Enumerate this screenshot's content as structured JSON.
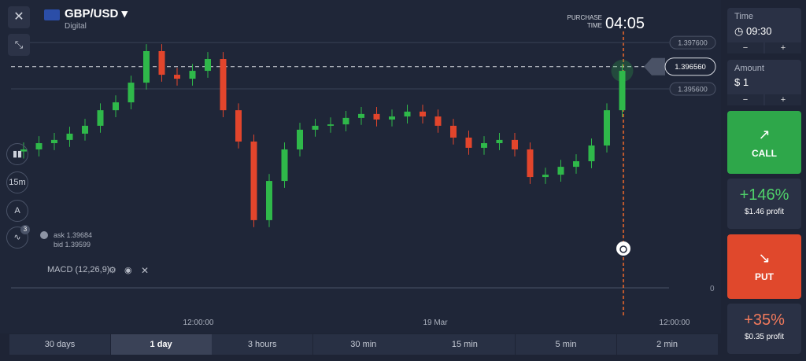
{
  "header": {
    "asset": "GBP/USD",
    "asset_type": "Digital",
    "purchase_label_1": "PURCHASE",
    "purchase_label_2": "TIME",
    "purchase_time": "04:05"
  },
  "quote": {
    "ask": "ask 1.39684",
    "bid": "bid 1.39599"
  },
  "tools": {
    "timeframe": "15m",
    "indicator_count": "3"
  },
  "chart": {
    "type": "candlestick",
    "ylim": [
      1.38824,
      1.39896
    ],
    "yticks": [
      {
        "value": 1.3976,
        "label": "1.397600"
      },
      {
        "value": 1.3956,
        "label": "1.395600"
      }
    ],
    "current_price": {
      "value": 1.39656,
      "label": "1.396560"
    },
    "up_color": "#2fb84a",
    "down_color": "#e2452c",
    "candles": {
      "open": [
        1.3929,
        1.39299,
        1.39326,
        1.3934,
        1.39367,
        1.39401,
        1.39468,
        1.39502,
        1.39587,
        1.39723,
        1.39621,
        1.39604,
        1.39638,
        1.39689,
        1.39468,
        1.39333,
        1.38994,
        1.39163,
        1.39299,
        1.39384,
        1.39401,
        1.39407,
        1.39435,
        1.39452,
        1.39428,
        1.39441,
        1.39462,
        1.39441,
        1.39401,
        1.3935,
        1.39306,
        1.39326,
        1.3934,
        1.39299,
        1.3918,
        1.3919,
        1.39224,
        1.39248,
        1.39316,
        1.39468
      ],
      "close": [
        1.39299,
        1.39326,
        1.3934,
        1.39367,
        1.39401,
        1.39468,
        1.39502,
        1.39587,
        1.39723,
        1.39621,
        1.39604,
        1.39638,
        1.39689,
        1.39468,
        1.39333,
        1.38994,
        1.39163,
        1.39299,
        1.39384,
        1.39401,
        1.39407,
        1.39435,
        1.39452,
        1.39428,
        1.39441,
        1.39462,
        1.39441,
        1.39401,
        1.3935,
        1.39306,
        1.39326,
        1.3934,
        1.39299,
        1.3918,
        1.3919,
        1.39224,
        1.39248,
        1.39316,
        1.39468,
        1.39638
      ],
      "high": [
        1.39329,
        1.39356,
        1.3937,
        1.39397,
        1.39431,
        1.39498,
        1.39532,
        1.39617,
        1.39753,
        1.39753,
        1.39651,
        1.39668,
        1.39719,
        1.39719,
        1.39498,
        1.39363,
        1.39193,
        1.39329,
        1.39414,
        1.39431,
        1.39437,
        1.39465,
        1.39482,
        1.39482,
        1.39471,
        1.39492,
        1.39492,
        1.39471,
        1.39431,
        1.3938,
        1.39356,
        1.3937,
        1.3937,
        1.39329,
        1.3922,
        1.39254,
        1.39278,
        1.39346,
        1.39498,
        1.39668
      ],
      "low": [
        1.3926,
        1.39269,
        1.39296,
        1.3931,
        1.39337,
        1.39371,
        1.39438,
        1.39472,
        1.39557,
        1.39591,
        1.39574,
        1.39574,
        1.39608,
        1.39438,
        1.39303,
        1.38964,
        1.38964,
        1.39133,
        1.39269,
        1.39354,
        1.39371,
        1.39377,
        1.39405,
        1.39398,
        1.39398,
        1.39411,
        1.39411,
        1.39371,
        1.3932,
        1.39276,
        1.39276,
        1.39296,
        1.39269,
        1.3915,
        1.3915,
        1.3916,
        1.39194,
        1.39218,
        1.39286,
        1.39438
      ]
    },
    "macd_label": "MACD (12,26,9)",
    "macd_zero": "0",
    "x_labels": [
      "12:00:00",
      "19 Mar",
      "12:00:00"
    ]
  },
  "timeframes": [
    "30 days",
    "1 day",
    "3 hours",
    "30 min",
    "15 min",
    "5 min",
    "2 min"
  ],
  "panel": {
    "time_label": "Time",
    "time_value": "09:30",
    "minus": "−",
    "plus": "+",
    "amount_label": "Amount",
    "amount_value": "$ 1",
    "call": "CALL",
    "call_payout": "+146%",
    "call_profit": "$1.46 profit",
    "put": "PUT",
    "put_payout": "+35%",
    "put_profit": "$0.35 profit"
  }
}
